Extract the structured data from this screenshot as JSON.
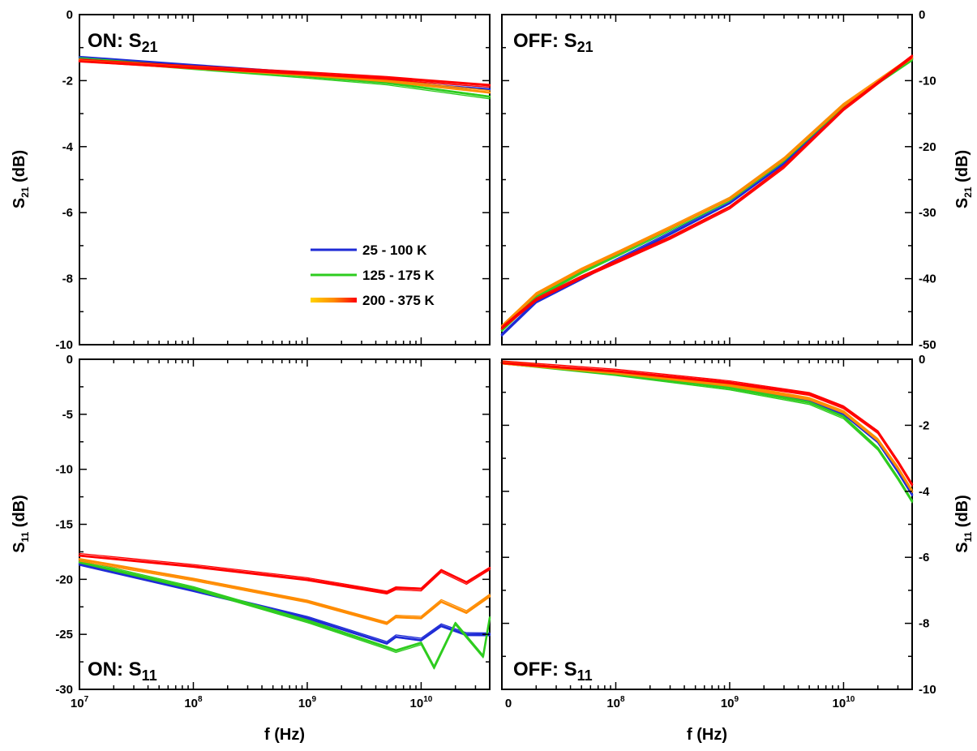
{
  "figure": {
    "x_axis_title": "f (Hz)",
    "x_ticks": [
      {
        "value": 10000000,
        "base": "10",
        "exp": "7"
      },
      {
        "value": 100000000,
        "base": "10",
        "exp": "8"
      },
      {
        "value": 1000000000,
        "base": "10",
        "exp": "9"
      },
      {
        "value": 10000000000,
        "base": "10",
        "exp": "10"
      }
    ],
    "right_x_first_tick_text": "0",
    "legend": [
      {
        "label": "25 - 100 K",
        "color": "#1e2bd6"
      },
      {
        "label": "125 - 175 K",
        "color": "#2ecc1f"
      },
      {
        "label": "200 - 375 K",
        "gradient": [
          "#ffd400",
          "#ff8c00",
          "#ff0000"
        ]
      }
    ]
  },
  "chart_data": [
    {
      "type": "line",
      "panel": "top-left",
      "label_main": "ON: S",
      "label_sub": "21",
      "ylabel_main": "S",
      "ylabel_sub": "21",
      "ylabel_unit": " (dB)",
      "xscale": "log",
      "xlim": [
        10000000,
        40000000000
      ],
      "ylim": [
        -10,
        0
      ],
      "yticks": [
        0,
        -2,
        -4,
        -6,
        -8,
        -10
      ],
      "y_axis_side": "left",
      "series": [
        {
          "name": "25 - 100 K",
          "color": "#1e2bd6",
          "x": [
            10000000,
            100000000,
            1000000000,
            5000000000,
            10000000000,
            40000000000
          ],
          "y": [
            -1.3,
            -1.55,
            -1.8,
            -1.98,
            -2.1,
            -2.25
          ]
        },
        {
          "name": "125 - 175 K",
          "color": "#2ecc1f",
          "x": [
            10000000,
            100000000,
            1000000000,
            5000000000,
            10000000000,
            40000000000
          ],
          "y": [
            -1.35,
            -1.62,
            -1.88,
            -2.08,
            -2.22,
            -2.5
          ]
        },
        {
          "name": "200 - 375 K",
          "color": "#ff8c00",
          "x": [
            10000000,
            100000000,
            1000000000,
            5000000000,
            10000000000,
            40000000000
          ],
          "y": [
            -1.38,
            -1.6,
            -1.82,
            -2.0,
            -2.12,
            -2.35
          ]
        },
        {
          "name": "200 - 375 K",
          "color": "#ff0000",
          "x": [
            10000000,
            100000000,
            1000000000,
            5000000000,
            10000000000,
            40000000000
          ],
          "y": [
            -1.4,
            -1.6,
            -1.78,
            -1.92,
            -2.0,
            -2.15
          ]
        }
      ]
    },
    {
      "type": "line",
      "panel": "top-right",
      "label_main": "OFF: S",
      "label_sub": "21",
      "ylabel_main": "S",
      "ylabel_sub": "21",
      "ylabel_unit": " (dB)",
      "xscale": "log",
      "xlim": [
        10000000,
        40000000000
      ],
      "ylim": [
        -50,
        0
      ],
      "yticks": [
        0,
        -10,
        -20,
        -30,
        -40,
        -50
      ],
      "y_axis_side": "right",
      "series": [
        {
          "name": "25 - 100 K",
          "color": "#1e2bd6",
          "x": [
            10000000,
            20000000,
            50000000,
            100000000,
            300000000,
            1000000000,
            3000000000,
            10000000000,
            40000000000
          ],
          "y": [
            -48.5,
            -43.5,
            -40.0,
            -37.3,
            -33.2,
            -28.5,
            -22.5,
            -14.0,
            -6.6
          ]
        },
        {
          "name": "125 - 175 K",
          "color": "#2ecc1f",
          "x": [
            10000000,
            20000000,
            50000000,
            100000000,
            300000000,
            1000000000,
            3000000000,
            10000000000,
            40000000000
          ],
          "y": [
            -47.8,
            -42.8,
            -39.0,
            -36.5,
            -32.5,
            -28.0,
            -22.0,
            -13.8,
            -6.8
          ]
        },
        {
          "name": "200 - 375 K",
          "color": "#ff8c00",
          "x": [
            10000000,
            20000000,
            50000000,
            100000000,
            300000000,
            1000000000,
            3000000000,
            10000000000,
            40000000000
          ],
          "y": [
            -47.2,
            -42.3,
            -38.6,
            -36.2,
            -32.3,
            -27.9,
            -21.9,
            -13.7,
            -6.5
          ]
        },
        {
          "name": "200 - 375 K",
          "color": "#ff0000",
          "x": [
            10000000,
            20000000,
            50000000,
            100000000,
            300000000,
            1000000000,
            3000000000,
            10000000000,
            40000000000
          ],
          "y": [
            -47.5,
            -43.2,
            -39.8,
            -37.5,
            -33.8,
            -29.2,
            -23.0,
            -14.3,
            -6.3
          ]
        }
      ]
    },
    {
      "type": "line",
      "panel": "bottom-left",
      "label_main": "ON: S",
      "label_sub": "11",
      "ylabel_main": "S",
      "ylabel_sub": "11",
      "ylabel_unit": " (dB)",
      "xscale": "log",
      "xlim": [
        10000000,
        40000000000
      ],
      "ylim": [
        -30,
        0
      ],
      "yticks": [
        0,
        -5,
        -10,
        -15,
        -20,
        -25,
        -30
      ],
      "y_axis_side": "left",
      "series": [
        {
          "name": "25 - 100 K",
          "color": "#1e2bd6",
          "x": [
            10000000,
            100000000,
            1000000000,
            5000000000,
            6000000000,
            10000000000,
            15000000000,
            25000000000,
            40000000000
          ],
          "y": [
            -18.6,
            -21.0,
            -23.5,
            -25.8,
            -25.2,
            -25.5,
            -24.2,
            -25.0,
            -25.0
          ]
        },
        {
          "name": "125 - 175 K",
          "color": "#2ecc1f",
          "x": [
            10000000,
            100000000,
            1000000000,
            5000000000,
            6000000000,
            10000000000,
            13000000000,
            20000000000,
            35000000000,
            40000000000
          ],
          "y": [
            -18.4,
            -20.8,
            -23.8,
            -26.2,
            -26.5,
            -25.8,
            -28.0,
            -24.0,
            -27.0,
            -23.5
          ]
        },
        {
          "name": "200 - 375 K",
          "color": "#ff8c00",
          "x": [
            10000000,
            100000000,
            1000000000,
            5000000000,
            6000000000,
            10000000000,
            15000000000,
            25000000000,
            40000000000
          ],
          "y": [
            -18.2,
            -20.0,
            -22.0,
            -24.0,
            -23.4,
            -23.5,
            -22.0,
            -23.0,
            -21.5
          ]
        },
        {
          "name": "200 - 375 K",
          "color": "#ff0000",
          "x": [
            10000000,
            100000000,
            1000000000,
            5000000000,
            6000000000,
            10000000000,
            15000000000,
            25000000000,
            40000000000
          ],
          "y": [
            -17.8,
            -18.8,
            -20.0,
            -21.2,
            -20.8,
            -20.9,
            -19.2,
            -20.3,
            -19.0
          ]
        }
      ]
    },
    {
      "type": "line",
      "panel": "bottom-right",
      "label_main": "OFF: S",
      "label_sub": "11",
      "ylabel_main": "S",
      "ylabel_sub": "11",
      "ylabel_unit": " (dB)",
      "xscale": "log",
      "xlim": [
        10000000,
        40000000000
      ],
      "ylim": [
        -10,
        0
      ],
      "yticks": [
        0,
        -2,
        -4,
        -6,
        -8,
        -10
      ],
      "y_axis_side": "right",
      "series": [
        {
          "name": "25 - 100 K",
          "color": "#1e2bd6",
          "x": [
            10000000,
            100000000,
            1000000000,
            5000000000,
            10000000000,
            20000000000,
            30000000000,
            40000000000
          ],
          "y": [
            -0.1,
            -0.42,
            -0.82,
            -1.25,
            -1.65,
            -2.5,
            -3.4,
            -4.1
          ]
        },
        {
          "name": "125 - 175 K",
          "color": "#2ecc1f",
          "x": [
            10000000,
            100000000,
            1000000000,
            5000000000,
            10000000000,
            20000000000,
            30000000000,
            40000000000
          ],
          "y": [
            -0.1,
            -0.45,
            -0.88,
            -1.32,
            -1.75,
            -2.7,
            -3.6,
            -4.3
          ]
        },
        {
          "name": "200 - 375 K",
          "color": "#ff8c00",
          "x": [
            10000000,
            100000000,
            1000000000,
            5000000000,
            10000000000,
            20000000000,
            30000000000,
            40000000000
          ],
          "y": [
            -0.1,
            -0.4,
            -0.78,
            -1.2,
            -1.6,
            -2.45,
            -3.3,
            -4.0
          ]
        },
        {
          "name": "200 - 375 K",
          "color": "#ff0000",
          "x": [
            10000000,
            100000000,
            1000000000,
            5000000000,
            10000000000,
            20000000000,
            30000000000,
            40000000000
          ],
          "y": [
            -0.1,
            -0.35,
            -0.7,
            -1.05,
            -1.45,
            -2.2,
            -3.1,
            -3.8
          ]
        }
      ]
    }
  ]
}
